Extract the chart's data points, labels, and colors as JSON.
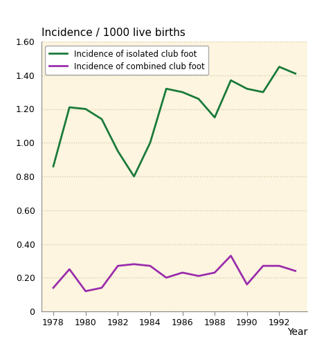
{
  "years": [
    1978,
    1979,
    1980,
    1981,
    1982,
    1983,
    1984,
    1985,
    1986,
    1987,
    1988,
    1989,
    1990,
    1991,
    1992,
    1993
  ],
  "isolated": [
    0.86,
    1.21,
    1.2,
    1.14,
    0.95,
    0.8,
    1.0,
    1.32,
    1.3,
    1.26,
    1.15,
    1.37,
    1.32,
    1.3,
    1.45,
    1.41
  ],
  "combined": [
    0.14,
    0.25,
    0.12,
    0.14,
    0.27,
    0.28,
    0.27,
    0.2,
    0.23,
    0.21,
    0.23,
    0.33,
    0.16,
    0.27,
    0.27,
    0.24
  ],
  "isolated_color": "#1a7a3a",
  "combined_color": "#9b2dac",
  "title": "Incidence / 1000 live births",
  "xlabel": "Year",
  "ylim": [
    0,
    1.6
  ],
  "yticks": [
    0,
    0.2,
    0.4,
    0.6,
    0.8,
    1.0,
    1.2,
    1.4,
    1.6
  ],
  "xticks": [
    1978,
    1980,
    1982,
    1984,
    1986,
    1988,
    1990,
    1992
  ],
  "plot_bg_color": "#fdf5e0",
  "fig_bg_color": "#ffffff",
  "legend_isolated": "Incidence of isolated club foot",
  "legend_combined": "Incidence of combined club foot",
  "grid_color": "#c8c8a0",
  "linewidth": 2.0,
  "spine_color": "#888888",
  "tick_label_size": 9,
  "title_fontsize": 11,
  "xlabel_fontsize": 10
}
